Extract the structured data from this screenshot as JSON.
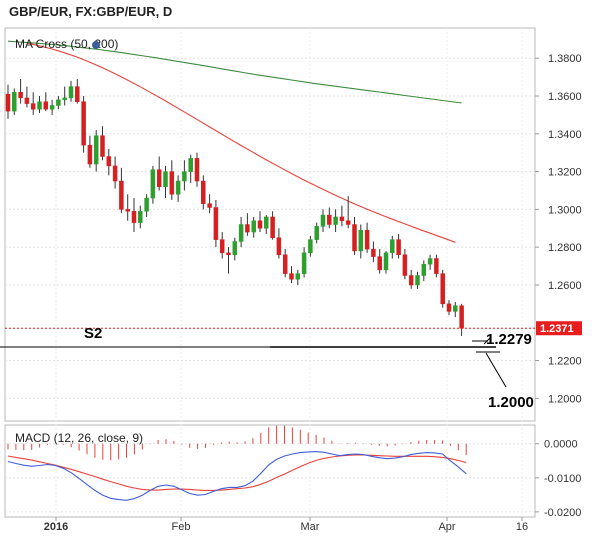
{
  "chart_data": [
    {
      "type": "candlestick",
      "title": "GBP/EUR, FX:GBP/EUR, D",
      "overlay_label": "MA Cross (50, 200)",
      "x_tick_labels": [
        "2016",
        "Feb",
        "Mar",
        "Apr",
        "16"
      ],
      "y_tick_labels": [
        "1.3800",
        "1.3600",
        "1.3400",
        "1.3200",
        "1.3000",
        "1.2800",
        "1.2600",
        "1.2200",
        "1.2000"
      ],
      "ylim": [
        1.188,
        1.396
      ],
      "last_price_label": "1.2371",
      "last_price": 1.2371,
      "annotations": {
        "support_label": "S2",
        "support_level": 1.2279,
        "support_value_label": "1.2279",
        "target_value_label": "1.2000"
      },
      "grid": true,
      "colors": {
        "up": "#2e9e2e",
        "down": "#d42020",
        "ma50": "#e8423a",
        "ma200": "#3c8c3c",
        "last_price_badge": "#e81e1e"
      },
      "ohlc": [
        [
          1.361,
          1.366,
          1.348,
          1.352
        ],
        [
          1.352,
          1.364,
          1.35,
          1.362
        ],
        [
          1.362,
          1.369,
          1.356,
          1.359
        ],
        [
          1.359,
          1.365,
          1.354,
          1.356
        ],
        [
          1.356,
          1.362,
          1.35,
          1.353
        ],
        [
          1.353,
          1.36,
          1.351,
          1.357
        ],
        [
          1.357,
          1.362,
          1.352,
          1.353
        ],
        [
          1.353,
          1.358,
          1.35,
          1.355
        ],
        [
          1.355,
          1.36,
          1.353,
          1.358
        ],
        [
          1.358,
          1.365,
          1.355,
          1.359
        ],
        [
          1.359,
          1.368,
          1.357,
          1.365
        ],
        [
          1.365,
          1.369,
          1.356,
          1.357
        ],
        [
          1.357,
          1.36,
          1.33,
          1.334
        ],
        [
          1.334,
          1.339,
          1.322,
          1.324
        ],
        [
          1.324,
          1.342,
          1.32,
          1.339
        ],
        [
          1.339,
          1.344,
          1.326,
          1.328
        ],
        [
          1.328,
          1.332,
          1.318,
          1.323
        ],
        [
          1.323,
          1.328,
          1.311,
          1.315
        ],
        [
          1.315,
          1.322,
          1.298,
          1.3
        ],
        [
          1.3,
          1.308,
          1.294,
          1.299
        ],
        [
          1.299,
          1.306,
          1.288,
          1.293
        ],
        [
          1.293,
          1.302,
          1.29,
          1.299
        ],
        [
          1.299,
          1.308,
          1.296,
          1.306
        ],
        [
          1.306,
          1.323,
          1.303,
          1.321
        ],
        [
          1.321,
          1.328,
          1.31,
          1.312
        ],
        [
          1.312,
          1.323,
          1.306,
          1.32
        ],
        [
          1.32,
          1.326,
          1.305,
          1.308
        ],
        [
          1.308,
          1.318,
          1.304,
          1.315
        ],
        [
          1.315,
          1.326,
          1.31,
          1.32
        ],
        [
          1.32,
          1.329,
          1.314,
          1.327
        ],
        [
          1.327,
          1.33,
          1.312,
          1.315
        ],
        [
          1.315,
          1.318,
          1.3,
          1.303
        ],
        [
          1.303,
          1.308,
          1.298,
          1.301
        ],
        [
          1.301,
          1.305,
          1.28,
          1.284
        ],
        [
          1.284,
          1.288,
          1.274,
          1.277
        ],
        [
          1.277,
          1.28,
          1.266,
          1.276
        ],
        [
          1.276,
          1.285,
          1.273,
          1.283
        ],
        [
          1.283,
          1.296,
          1.28,
          1.292
        ],
        [
          1.292,
          1.298,
          1.286,
          1.288
        ],
        [
          1.288,
          1.296,
          1.285,
          1.294
        ],
        [
          1.294,
          1.299,
          1.288,
          1.29
        ],
        [
          1.29,
          1.297,
          1.287,
          1.296
        ],
        [
          1.296,
          1.299,
          1.284,
          1.285
        ],
        [
          1.285,
          1.29,
          1.274,
          1.276
        ],
        [
          1.276,
          1.279,
          1.264,
          1.266
        ],
        [
          1.266,
          1.27,
          1.261,
          1.263
        ],
        [
          1.263,
          1.268,
          1.26,
          1.266
        ],
        [
          1.266,
          1.28,
          1.264,
          1.277
        ],
        [
          1.277,
          1.286,
          1.275,
          1.284
        ],
        [
          1.284,
          1.293,
          1.282,
          1.291
        ],
        [
          1.291,
          1.3,
          1.288,
          1.297
        ],
        [
          1.297,
          1.301,
          1.29,
          1.292
        ],
        [
          1.292,
          1.3,
          1.288,
          1.296
        ],
        [
          1.296,
          1.302,
          1.291,
          1.294
        ],
        [
          1.294,
          1.307,
          1.29,
          1.292
        ],
        [
          1.292,
          1.296,
          1.276,
          1.278
        ],
        [
          1.278,
          1.292,
          1.274,
          1.289
        ],
        [
          1.289,
          1.293,
          1.277,
          1.279
        ],
        [
          1.279,
          1.283,
          1.272,
          1.275
        ],
        [
          1.275,
          1.279,
          1.266,
          1.268
        ],
        [
          1.268,
          1.278,
          1.266,
          1.277
        ],
        [
          1.277,
          1.286,
          1.274,
          1.284
        ],
        [
          1.284,
          1.287,
          1.274,
          1.276
        ],
        [
          1.276,
          1.279,
          1.263,
          1.265
        ],
        [
          1.265,
          1.268,
          1.258,
          1.26
        ],
        [
          1.26,
          1.267,
          1.258,
          1.265
        ],
        [
          1.265,
          1.273,
          1.262,
          1.271
        ],
        [
          1.271,
          1.276,
          1.268,
          1.274
        ],
        [
          1.274,
          1.276,
          1.264,
          1.266
        ],
        [
          1.266,
          1.268,
          1.248,
          1.25
        ],
        [
          1.25,
          1.252,
          1.244,
          1.246
        ],
        [
          1.246,
          1.251,
          1.243,
          1.249
        ],
        [
          1.249,
          1.25,
          1.233,
          1.2371
        ]
      ],
      "ma50": [
        1.388,
        1.3866,
        1.3849,
        1.3829,
        1.3806,
        1.3779,
        1.375,
        1.3718,
        1.3684,
        1.3649,
        1.3612,
        1.3574,
        1.3535,
        1.3496,
        1.3456,
        1.3417,
        1.3377,
        1.3338,
        1.33,
        1.3262,
        1.3226,
        1.319,
        1.3155,
        1.3122,
        1.309,
        1.3059,
        1.3029,
        1.3001,
        1.2974,
        1.2948,
        1.2923,
        1.2898,
        1.2874,
        1.285,
        1.2826
      ],
      "ma200": [
        1.389,
        1.3886,
        1.3882,
        1.3877,
        1.3872,
        1.3867,
        1.386,
        1.3853,
        1.3846,
        1.3838,
        1.383,
        1.3821,
        1.3812,
        1.3803,
        1.3793,
        1.3783,
        1.3773,
        1.3763,
        1.3753,
        1.3742,
        1.3732,
        1.3722,
        1.3712,
        1.3703,
        1.3694,
        1.3685,
        1.3676,
        1.3667,
        1.3659,
        1.3651,
        1.3643,
        1.3635,
        1.3627,
        1.3619,
        1.3611,
        1.3603,
        1.3595,
        1.3587,
        1.3579,
        1.3571,
        1.3563
      ]
    },
    {
      "type": "macd",
      "title": "MACD (12, 26, close, 9)",
      "y_tick_labels": [
        "0.0000",
        "-0.0100",
        "-0.0200"
      ],
      "ylim": [
        -0.0215,
        0.0055
      ],
      "colors": {
        "macd": "#3f5fd9",
        "signal": "#e8423a",
        "histogram": "#e8423a"
      },
      "macd": [
        -0.0052,
        -0.0058,
        -0.0063,
        -0.0066,
        -0.0064,
        -0.0061,
        -0.0064,
        -0.0072,
        -0.0085,
        -0.0102,
        -0.012,
        -0.0137,
        -0.0151,
        -0.016,
        -0.0164,
        -0.0166,
        -0.0161,
        -0.0151,
        -0.0137,
        -0.0125,
        -0.0121,
        -0.0125,
        -0.0135,
        -0.0146,
        -0.0151,
        -0.0149,
        -0.014,
        -0.0132,
        -0.0128,
        -0.0128,
        -0.0123,
        -0.011,
        -0.0087,
        -0.0062,
        -0.0046,
        -0.0036,
        -0.003,
        -0.0026,
        -0.0024,
        -0.0023,
        -0.0025,
        -0.003,
        -0.0035,
        -0.0032,
        -0.003,
        -0.0032,
        -0.0037,
        -0.0041,
        -0.0044,
        -0.0042,
        -0.0038,
        -0.0032,
        -0.0028,
        -0.0026,
        -0.0027,
        -0.003,
        -0.005,
        -0.0068,
        -0.0088
      ],
      "signal": [
        -0.0036,
        -0.004,
        -0.0044,
        -0.0048,
        -0.0053,
        -0.0058,
        -0.0063,
        -0.0069,
        -0.0075,
        -0.0082,
        -0.0089,
        -0.0096,
        -0.0104,
        -0.0111,
        -0.0118,
        -0.0125,
        -0.013,
        -0.0134,
        -0.0136,
        -0.0136,
        -0.0134,
        -0.0133,
        -0.0133,
        -0.0134,
        -0.0136,
        -0.0137,
        -0.0137,
        -0.0136,
        -0.0134,
        -0.0132,
        -0.013,
        -0.0126,
        -0.0119,
        -0.011,
        -0.0099,
        -0.0089,
        -0.0078,
        -0.0067,
        -0.0057,
        -0.0049,
        -0.0043,
        -0.0039,
        -0.0036,
        -0.0034,
        -0.0033,
        -0.0033,
        -0.0034,
        -0.0035,
        -0.0036,
        -0.0037,
        -0.0037,
        -0.0037,
        -0.0037,
        -0.0037,
        -0.0038,
        -0.004,
        -0.0044,
        -0.0049,
        -0.0055
      ]
    }
  ]
}
